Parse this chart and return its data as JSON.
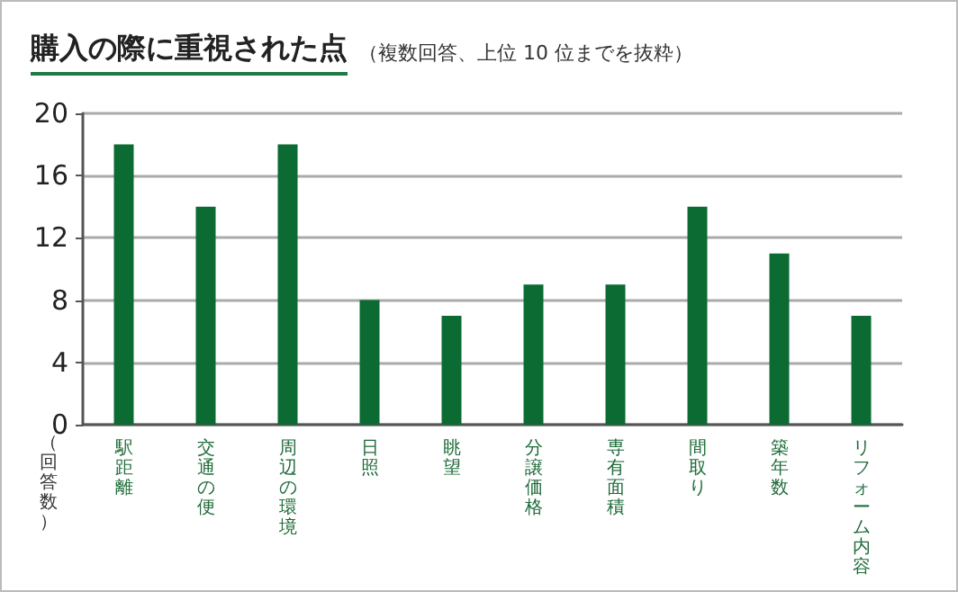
{
  "chart_data": {
    "type": "bar",
    "title": "購入の際に重視された点",
    "subtitle": "（複数回答、上位 10 位までを抜粋）",
    "ylabel": "（回答数）",
    "categories": [
      "駅距離",
      "交通の便",
      "周辺の環境",
      "日照",
      "眺望",
      "分譲価格",
      "専有面積",
      "間取り",
      "築年数",
      "リフォーム内容"
    ],
    "values": [
      18,
      14,
      18,
      8,
      7,
      9,
      9,
      14,
      11,
      7
    ],
    "color": "#0b6b33",
    "ylim": [
      0,
      20
    ],
    "yticks": [
      0,
      4,
      8,
      12,
      16,
      20
    ],
    "grid": "y"
  }
}
